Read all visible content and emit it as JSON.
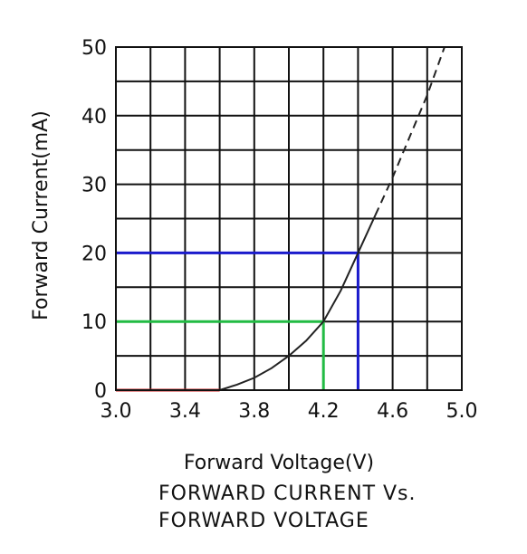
{
  "chart_data": {
    "type": "line",
    "title": "",
    "xlabel": "Forward Voltage(V)",
    "ylabel": "Forward Current(mA)",
    "xlim": [
      3.0,
      5.0
    ],
    "ylim": [
      0,
      50
    ],
    "grid": true,
    "x_ticks": [
      "3.0",
      "3.4",
      "3.8",
      "4.2",
      "4.6",
      "5.0"
    ],
    "y_ticks": [
      "0",
      "10",
      "20",
      "30",
      "40",
      "50"
    ],
    "series": [
      {
        "color": "#222222",
        "points": [
          [
            3.6,
            0
          ],
          [
            3.7,
            0.8
          ],
          [
            3.8,
            1.8
          ],
          [
            3.9,
            3.2
          ],
          [
            4.0,
            5.0
          ],
          [
            4.1,
            7.2
          ],
          [
            4.2,
            10.0
          ],
          [
            4.3,
            14.5
          ],
          [
            4.4,
            20.0
          ],
          [
            4.5,
            25.5
          ]
        ]
      },
      {
        "color": "#222222",
        "dashed": true,
        "points": [
          [
            4.5,
            25.5
          ],
          [
            4.6,
            31.0
          ],
          [
            4.7,
            37.0
          ],
          [
            4.8,
            43.0
          ],
          [
            4.9,
            50.0
          ]
        ]
      }
    ],
    "markers": [
      {
        "color": "#cc2222",
        "x": 3.6,
        "y": 0
      },
      {
        "color": "#22bb44",
        "x": 4.2,
        "y": 10
      },
      {
        "color": "#1a1acc",
        "x": 4.4,
        "y": 20
      }
    ]
  },
  "caption": {
    "line1": "FORWARD CURRENT Vs.",
    "line2": "FORWARD VOLTAGE"
  }
}
